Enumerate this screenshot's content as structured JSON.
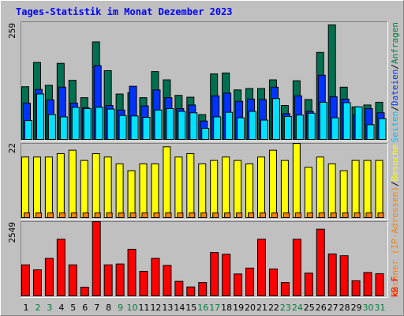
{
  "title": "Tages-Statistik im Monat Dezember 2023",
  "colors": {
    "background": "#c0c0c0",
    "title": "#0000ff",
    "weekday": "#000000",
    "weekend": "#008040",
    "anfragen": "#007050",
    "dateien": "#0033ff",
    "seiten": "#00e0ff",
    "rechner": "#ffff00",
    "besuche": "#ff8000",
    "kbf": "#ff0000"
  },
  "side_labels": {
    "top": [
      {
        "text": "Seiten",
        "color": "#00c0ff"
      },
      {
        "text": "/",
        "color": "#000000"
      },
      {
        "text": "Dateien",
        "color": "#0033ff"
      },
      {
        "text": "/",
        "color": "#000000"
      },
      {
        "text": "Anfragen",
        "color": "#008040"
      }
    ],
    "middle": [
      {
        "text": "Rechner (IP-Adressen)",
        "color": "#ff8000"
      },
      {
        "text": "/",
        "color": "#000000"
      },
      {
        "text": "Besuche",
        "color": "#ffff00"
      }
    ],
    "bottom": [
      {
        "text": "kB F",
        "color": "#ff0000"
      }
    ]
  },
  "chart_data": [
    {
      "type": "bar",
      "panel": "anfragen-dateien-seiten",
      "y_max_label": "259",
      "ylim": [
        0,
        259
      ],
      "categories": [
        "1",
        "2",
        "3",
        "4",
        "5",
        "6",
        "7",
        "8",
        "9",
        "10",
        "11",
        "12",
        "13",
        "14",
        "15",
        "16",
        "17",
        "18",
        "19",
        "20",
        "21",
        "22",
        "23",
        "24",
        "25",
        "26",
        "27",
        "28",
        "29",
        "30",
        "31"
      ],
      "weekend_days": [
        "2",
        "3",
        "9",
        "10",
        "16",
        "17",
        "23",
        "24",
        "30",
        "31"
      ],
      "series": [
        {
          "key": "anfragen",
          "values": [
            117,
            170,
            120,
            168,
            131,
            93,
            215,
            152,
            101,
            104,
            93,
            150,
            132,
            98,
            94,
            56,
            145,
            147,
            110,
            113,
            113,
            132,
            76,
            130,
            89,
            192,
            252,
            116,
            73,
            77,
            83
          ]
        },
        {
          "key": "dateien",
          "values": [
            81,
            111,
            88,
            116,
            81,
            71,
            163,
            76,
            66,
            118,
            75,
            110,
            93,
            69,
            77,
            42,
            97,
            103,
            85,
            90,
            89,
            116,
            58,
            97,
            63,
            142,
            95,
            90,
            56,
            69,
            60
          ]
        },
        {
          "key": "seiten",
          "values": [
            43,
            101,
            56,
            51,
            72,
            69,
            72,
            68,
            54,
            53,
            50,
            66,
            69,
            63,
            60,
            26,
            51,
            61,
            49,
            63,
            44,
            91,
            52,
            55,
            59,
            83,
            49,
            82,
            73,
            34,
            47
          ]
        }
      ]
    },
    {
      "type": "bar",
      "panel": "besuche-rechner",
      "y_max_label": "22",
      "ylim": [
        0,
        22
      ],
      "categories": [
        "1",
        "2",
        "3",
        "4",
        "5",
        "6",
        "7",
        "8",
        "9",
        "10",
        "11",
        "12",
        "13",
        "14",
        "15",
        "16",
        "17",
        "18",
        "19",
        "20",
        "21",
        "22",
        "23",
        "24",
        "25",
        "26",
        "27",
        "28",
        "29",
        "30",
        "31"
      ],
      "series": [
        {
          "key": "besuche",
          "values": [
            18,
            18,
            18,
            19,
            20,
            17,
            19,
            18,
            16,
            14,
            16,
            16,
            21,
            18,
            19,
            16,
            17,
            18,
            17,
            16,
            18,
            20,
            17,
            22,
            15,
            18,
            16,
            14,
            17,
            17,
            17
          ]
        },
        {
          "key": "rechner",
          "values": [
            1,
            1,
            1,
            1,
            1,
            1,
            1,
            1,
            1,
            1,
            1,
            1,
            1,
            1,
            1,
            1,
            1,
            1,
            1,
            1,
            1,
            1,
            1,
            1,
            1,
            1,
            1,
            1,
            1,
            1,
            1
          ]
        }
      ]
    },
    {
      "type": "bar",
      "panel": "kbf",
      "y_max_label": "2549",
      "ylim": [
        0,
        2549
      ],
      "categories": [
        "1",
        "2",
        "3",
        "4",
        "5",
        "6",
        "7",
        "8",
        "9",
        "10",
        "11",
        "12",
        "13",
        "14",
        "15",
        "16",
        "17",
        "18",
        "19",
        "20",
        "21",
        "22",
        "23",
        "24",
        "25",
        "26",
        "27",
        "28",
        "29",
        "30",
        "31"
      ],
      "series": [
        {
          "key": "kbf",
          "values": [
            1080,
            910,
            1300,
            1950,
            1080,
            320,
            2549,
            1080,
            1110,
            1610,
            860,
            1300,
            1060,
            520,
            330,
            480,
            1500,
            1440,
            770,
            970,
            1950,
            940,
            480,
            1950,
            800,
            2290,
            1450,
            1390,
            540,
            820,
            780
          ]
        }
      ]
    }
  ]
}
